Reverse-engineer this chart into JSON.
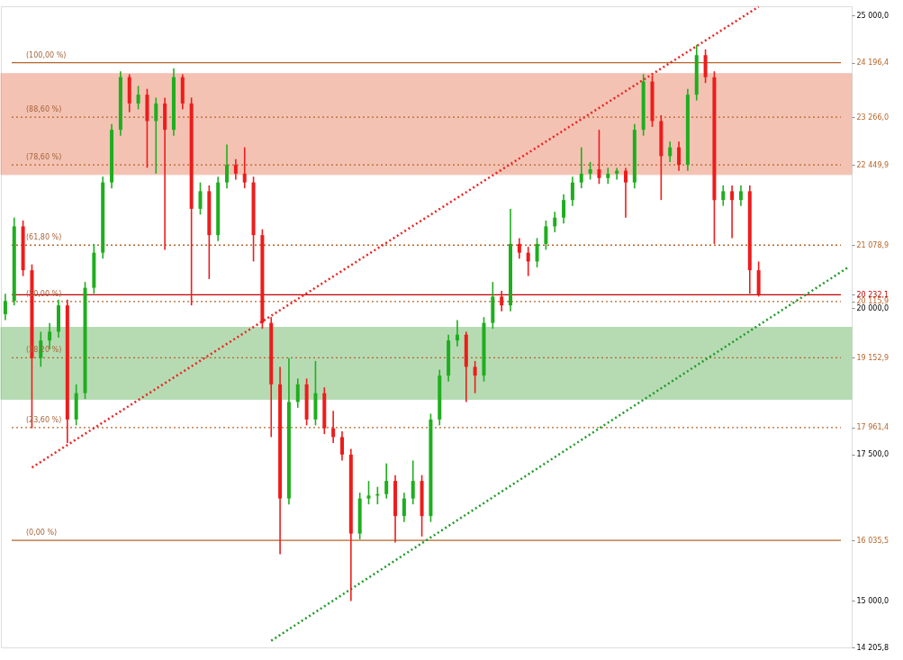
{
  "chart_data": {
    "type": "candlestick",
    "categories": [
      null,
      null,
      null,
      null,
      null,
      null,
      null,
      null,
      null,
      null,
      null,
      null,
      null,
      null,
      null,
      null,
      null,
      null,
      null,
      null,
      null,
      null,
      null,
      null,
      null,
      null,
      null,
      null,
      null,
      null,
      null,
      null,
      null,
      null,
      null,
      null,
      null,
      null,
      null,
      null,
      null,
      null,
      null,
      null,
      null,
      null,
      null,
      null,
      null,
      null,
      null,
      null,
      null,
      null,
      null,
      null,
      null,
      null,
      null,
      null,
      null,
      null,
      null,
      null,
      null,
      null,
      null,
      null,
      null,
      null,
      null,
      null,
      null,
      null,
      null,
      null,
      null,
      null,
      null,
      null,
      null,
      null,
      null,
      null,
      null,
      null,
      null,
      null,
      null,
      null,
      null,
      null,
      null,
      null,
      null,
      null
    ],
    "ohlc": [
      [
        19900,
        20250,
        19800,
        20125
      ],
      [
        20125,
        21550,
        20050,
        21400
      ],
      [
        21400,
        21500,
        20550,
        20650
      ],
      [
        20650,
        20750,
        17950,
        19150
      ],
      [
        19150,
        19600,
        19000,
        19450
      ],
      [
        19450,
        19750,
        19300,
        19600
      ],
      [
        19600,
        20150,
        19500,
        20050
      ],
      [
        20050,
        20150,
        17700,
        18100
      ],
      [
        18100,
        18700,
        18000,
        18550
      ],
      [
        18550,
        20450,
        18450,
        20350
      ],
      [
        20350,
        21100,
        20250,
        20950
      ],
      [
        20950,
        22250,
        20850,
        22150
      ],
      [
        22150,
        23150,
        22050,
        23050
      ],
      [
        23050,
        24050,
        22950,
        23950
      ],
      [
        23950,
        24000,
        23350,
        23500
      ],
      [
        23500,
        23800,
        23400,
        23650
      ],
      [
        23650,
        23750,
        22400,
        23200
      ],
      [
        23200,
        23600,
        22300,
        23500
      ],
      [
        23500,
        23600,
        21000,
        23050
      ],
      [
        23050,
        24100,
        22950,
        23950
      ],
      [
        23950,
        24000,
        23400,
        23500
      ],
      [
        23500,
        23600,
        20050,
        21700
      ],
      [
        21700,
        22150,
        21600,
        22000
      ],
      [
        22000,
        22100,
        20500,
        21250
      ],
      [
        21250,
        22250,
        21150,
        22150
      ],
      [
        22150,
        22800,
        22050,
        22450
      ],
      [
        22450,
        22550,
        22200,
        22300
      ],
      [
        22300,
        22750,
        22050,
        22150
      ],
      [
        22150,
        22250,
        20800,
        21250
      ],
      [
        21250,
        21350,
        19650,
        19750
      ],
      [
        19750,
        19850,
        17800,
        18700
      ],
      [
        18700,
        19000,
        15800,
        16750
      ],
      [
        16750,
        19150,
        16650,
        18400
      ],
      [
        18400,
        18800,
        18300,
        18700
      ],
      [
        18700,
        18800,
        18000,
        18100
      ],
      [
        18100,
        19100,
        18000,
        18550
      ],
      [
        18550,
        18650,
        17850,
        17950
      ],
      [
        17950,
        18250,
        17700,
        17800
      ],
      [
        17800,
        17900,
        17400,
        17500
      ],
      [
        17500,
        17600,
        15000,
        16150
      ],
      [
        16150,
        16850,
        16050,
        16750
      ],
      [
        16750,
        17050,
        16650,
        16800
      ],
      [
        16800,
        16950,
        16650,
        16825
      ],
      [
        16825,
        17350,
        16750,
        17050
      ],
      [
        17050,
        17150,
        16000,
        16450
      ],
      [
        16450,
        16850,
        16350,
        16750
      ],
      [
        16750,
        17400,
        16650,
        17050
      ],
      [
        17050,
        17150,
        16100,
        16450
      ],
      [
        16450,
        18200,
        16350,
        18100
      ],
      [
        18100,
        18950,
        18000,
        18850
      ],
      [
        18850,
        19550,
        18750,
        19450
      ],
      [
        19450,
        19800,
        19350,
        19550
      ],
      [
        19550,
        19600,
        18400,
        19000
      ],
      [
        19000,
        19100,
        18550,
        18850
      ],
      [
        18850,
        19850,
        18750,
        19750
      ],
      [
        19750,
        20450,
        19650,
        20200
      ],
      [
        20200,
        20300,
        19950,
        20050
      ],
      [
        20050,
        21700,
        19950,
        21100
      ],
      [
        21100,
        21200,
        20850,
        20950
      ],
      [
        20950,
        21050,
        20550,
        20800
      ],
      [
        20800,
        21200,
        20700,
        21100
      ],
      [
        21100,
        21500,
        21000,
        21400
      ],
      [
        21400,
        21650,
        21300,
        21550
      ],
      [
        21550,
        21950,
        21450,
        21850
      ],
      [
        21850,
        22250,
        21750,
        22150
      ],
      [
        22150,
        22750,
        22050,
        22300
      ],
      [
        22300,
        22500,
        22200,
        22375
      ],
      [
        22375,
        23050,
        22125,
        22225
      ],
      [
        22225,
        22400,
        22125,
        22300
      ],
      [
        22300,
        22400,
        22200,
        22350
      ],
      [
        22350,
        22400,
        21550,
        22150
      ],
      [
        22150,
        23150,
        22050,
        23050
      ],
      [
        23050,
        24000,
        22950,
        23875
      ],
      [
        23875,
        23975,
        23100,
        23200
      ],
      [
        23200,
        23300,
        21850,
        22600
      ],
      [
        22600,
        22850,
        22500,
        22750
      ],
      [
        22750,
        22850,
        22350,
        22450
      ],
      [
        22450,
        23750,
        22350,
        23650
      ],
      [
        23650,
        24500,
        23550,
        24325
      ],
      [
        24325,
        24425,
        23850,
        23950
      ],
      [
        23950,
        24050,
        21100,
        21850
      ],
      [
        21850,
        22100,
        21750,
        22000
      ],
      [
        22000,
        22100,
        21200,
        21850
      ],
      [
        21850,
        22100,
        21750,
        22000
      ],
      [
        22000,
        22100,
        20250,
        20650
      ],
      [
        20650,
        20800,
        20200,
        20232.1
      ],
      null,
      null,
      null,
      null,
      null,
      null,
      null,
      null,
      null,
      null
    ],
    "series": [
      {
        "type": "line",
        "color": "#ee2222",
        "line_style": "dotted",
        "values": [
          null,
          null,
          null,
          17280,
          17376,
          17472,
          17568,
          17664,
          17760,
          17856,
          17952,
          18048,
          18144,
          18240,
          18336,
          18432,
          18528,
          18624,
          18720,
          18816,
          18912,
          19008,
          19104,
          19200,
          19296,
          19392,
          19488,
          19584,
          19680,
          19776,
          19872,
          19968,
          20064,
          20160,
          20256,
          20352,
          20448,
          20544,
          20640,
          20736,
          20832,
          20928,
          21024,
          21120,
          21216,
          21312,
          21408,
          21504,
          21600,
          21696,
          21792,
          21888,
          21984,
          22080,
          22176,
          22272,
          22368,
          22464,
          22560,
          22656,
          22752,
          22848,
          22944,
          23040,
          23136,
          23232,
          23328,
          23424,
          23520,
          23616,
          23712,
          23808,
          23904,
          24000,
          24096,
          24192,
          24288,
          24384,
          24480,
          24576,
          24672,
          24768,
          24864,
          24960,
          25056,
          25152,
          null,
          null,
          null,
          null,
          null,
          null,
          null,
          null,
          null,
          null
        ]
      },
      {
        "type": "line",
        "color": "#22992b",
        "line_style": "dotted",
        "values": [
          null,
          null,
          null,
          null,
          null,
          null,
          null,
          null,
          null,
          null,
          null,
          null,
          null,
          null,
          null,
          null,
          null,
          null,
          null,
          null,
          null,
          null,
          null,
          null,
          null,
          null,
          null,
          null,
          null,
          null,
          14320,
          14418,
          14516,
          14614,
          14712,
          14810,
          14908,
          15006,
          15104,
          15202,
          15300,
          15398,
          15496,
          15594,
          15692,
          15790,
          15888,
          15986,
          16084,
          16182,
          16280,
          16378,
          16476,
          16574,
          16672,
          16770,
          16868,
          16966,
          17064,
          17162,
          17260,
          17358,
          17456,
          17554,
          17652,
          17750,
          17848,
          17946,
          18044,
          18142,
          18240,
          18338,
          18436,
          18534,
          18632,
          18730,
          18828,
          18926,
          19024,
          19122,
          19220,
          19318,
          19416,
          19514,
          19612,
          19710,
          19808,
          19906,
          20004,
          20102,
          20200,
          20298,
          20396,
          20494,
          20592,
          20690
        ]
      }
    ],
    "ylim": [
      14205.8,
      25160
    ],
    "yticks": [
      {
        "value": 25000,
        "label": "25 000,0"
      },
      {
        "value": 24196.4,
        "label": "24 196,4"
      },
      {
        "value": 23266.0,
        "label": "23 266,0"
      },
      {
        "value": 22449.9,
        "label": "22 449,9"
      },
      {
        "value": 21078.9,
        "label": "21 078,9"
      },
      {
        "value": 20232.1,
        "label": "20 232,1"
      },
      {
        "value": 20115.9,
        "label": "20 115,9"
      },
      {
        "value": 20000,
        "label": "20 000,0"
      },
      {
        "value": 19152.9,
        "label": "19 152,9"
      },
      {
        "value": 17961.4,
        "label": "17 961,4"
      },
      {
        "value": 17500,
        "label": "17 500,0"
      },
      {
        "value": 16035.5,
        "label": "16 035,5"
      },
      {
        "value": 15000,
        "label": "15 000,0"
      },
      {
        "value": 14205.8,
        "label": "14 205,8"
      }
    ],
    "tick_labels": "y",
    "ref_lines": [
      {
        "axis": "y",
        "value": 24196.4,
        "color": "#b5652a",
        "line_style": "solid"
      },
      {
        "axis": "y",
        "value": 23266.0,
        "color": "#b5652a",
        "line_style": "dotted"
      },
      {
        "axis": "y",
        "value": 22449.9,
        "color": "#b5652a",
        "line_style": "dotted"
      },
      {
        "axis": "y",
        "value": 21078.9,
        "color": "#b5652a",
        "line_style": "dotted"
      },
      {
        "axis": "y",
        "value": 20115.9,
        "color": "#b5652a",
        "line_style": "dotted"
      },
      {
        "axis": "y",
        "value": 19152.9,
        "color": "#b5652a",
        "line_style": "dotted"
      },
      {
        "axis": "y",
        "value": 17961.4,
        "color": "#b5652a",
        "line_style": "dotted"
      },
      {
        "axis": "y",
        "value": 16035.5,
        "color": "#b5652a",
        "line_style": "solid"
      },
      {
        "axis": "y",
        "value": 20232.1,
        "color": "#c00000",
        "line_style": "solid"
      }
    ],
    "bands": [
      {
        "axis": "y",
        "from": 22285,
        "to": 24010,
        "color": "#e8876a"
      },
      {
        "axis": "y",
        "from": 18445,
        "to": 19675,
        "color": "#6fb86a"
      }
    ],
    "annotations": [
      {
        "text": "(100,00 %)",
        "y": 24196.4
      },
      {
        "text": "(88,60 %)",
        "y": 23266.0
      },
      {
        "text": "(78,60 %)",
        "y": 22449.9
      },
      {
        "text": "(61,80 %)",
        "y": 21078.9
      },
      {
        "text": "(50,00 %)",
        "y": 20115.9
      },
      {
        "text": "(38,20 %)",
        "y": 19152.9
      },
      {
        "text": "(23,60 %)",
        "y": 17961.4
      },
      {
        "text": "(0,00 %)",
        "y": 16035.5
      }
    ],
    "legend": false,
    "grid": false
  }
}
